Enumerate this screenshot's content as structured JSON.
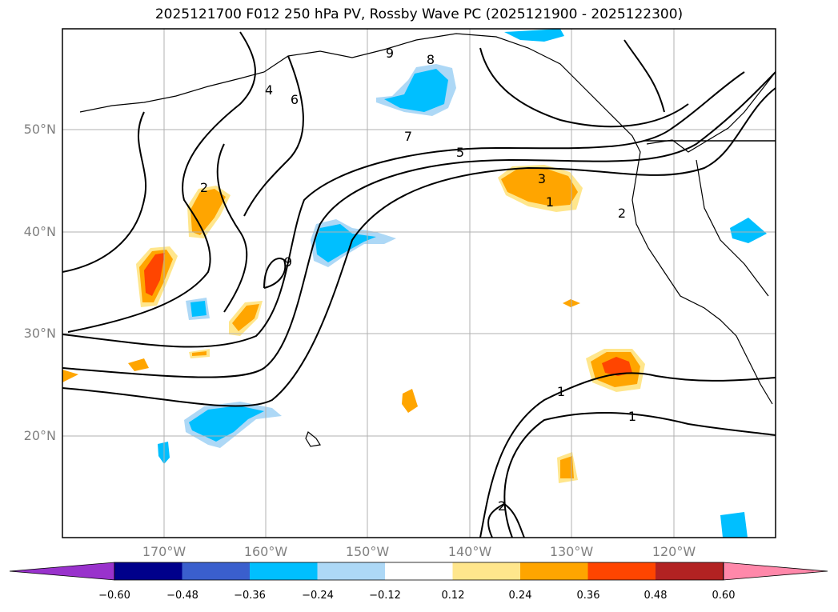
{
  "title": "2025121700 F012 250 hPa PV, Rossby Wave PC (2025121900 - 2025122300)",
  "lat_labels": [
    "50°N",
    "40°N",
    "30°N",
    "20°N"
  ],
  "lon_labels": [
    "170°W",
    "160°W",
    "150°W",
    "140°W",
    "130°W",
    "120°W"
  ],
  "contour_labels": [
    "9",
    "8",
    "7",
    "5",
    "4",
    "6",
    "2",
    "3",
    "1",
    "2",
    "9",
    "1",
    "1",
    "2"
  ],
  "colorbar": {
    "ticks": [
      "−0.60",
      "−0.48",
      "−0.36",
      "−0.24",
      "−0.12",
      "0.12",
      "0.24",
      "0.36",
      "0.48",
      "0.60"
    ],
    "colors": [
      "#9932cc",
      "#00008b",
      "#3a5fcd",
      "#00bfff",
      "#add8f6",
      "#ffffff",
      "#ffe68c",
      "#ffa500",
      "#ff4500",
      "#b22222",
      "#ff88aa"
    ]
  }
}
